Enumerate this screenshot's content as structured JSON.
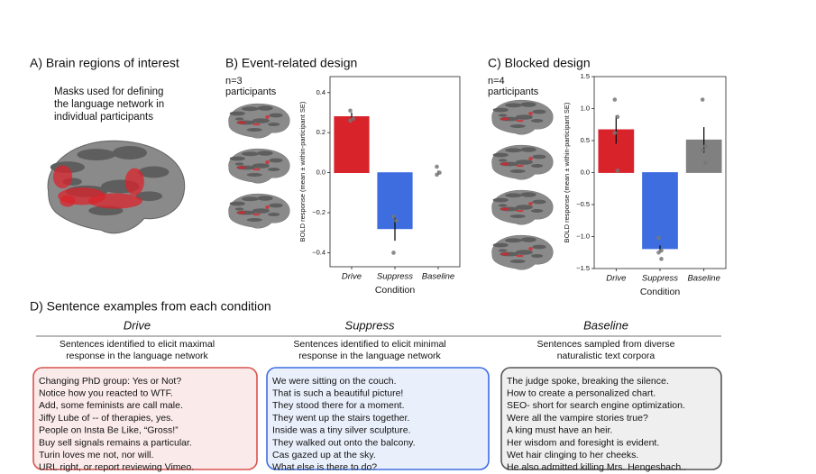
{
  "panel_a": {
    "title": "A)  Brain regions of interest",
    "caption": [
      "Masks used for defining",
      "the language network in",
      "individual participants"
    ]
  },
  "chart_data": [
    {
      "type": "bar",
      "title": "B)  Event-related design",
      "subtitle": [
        "n=3",
        "participants"
      ],
      "ylabel": "BOLD response (mean ± within-participant SE)",
      "xlabel": "Condition",
      "categories": [
        "Drive",
        "Suppress",
        "Baseline"
      ],
      "values": [
        0.28,
        -0.28,
        0.0
      ],
      "errors": [
        0.02,
        0.06,
        0.01
      ],
      "points": [
        [
          0.31,
          0.27,
          0.26
        ],
        [
          -0.22,
          -0.24,
          -0.4
        ],
        [
          0.03,
          0.0,
          -0.01
        ]
      ],
      "colors": [
        "#d9232b",
        "#3e6de0",
        "#808080"
      ],
      "ylim": [
        -0.47,
        0.48
      ],
      "yticks": [
        {
          "value": -0.4,
          "label": "−0.4"
        },
        {
          "value": -0.2,
          "label": "−0.2"
        },
        {
          "value": 0,
          "label": "0.0"
        },
        0.2,
        0.4
      ]
    },
    {
      "type": "bar",
      "title": "C)  Blocked design",
      "subtitle": [
        "n=4",
        "participants"
      ],
      "ylabel": "BOLD response (mean ± within-participant SE)",
      "xlabel": "Condition",
      "categories": [
        "Drive",
        "Suppress",
        "Baseline"
      ],
      "values": [
        0.67,
        -1.19,
        0.51
      ],
      "errors": [
        0.22,
        0.05,
        0.2
      ],
      "points": [
        [
          1.14,
          0.87,
          0.62,
          0.03
        ],
        [
          -1.02,
          -1.22,
          -1.25,
          -1.35
        ],
        [
          1.14,
          0.41,
          0.35,
          0.15
        ]
      ],
      "colors": [
        "#d9232b",
        "#3e6de0",
        "#808080"
      ],
      "ylim": [
        -1.5,
        1.5
      ],
      "yticks": [
        {
          "value": -1.5,
          "label": "−1.5"
        },
        {
          "value": -1,
          "label": "−1.0"
        },
        {
          "value": -0.5,
          "label": "−0.5"
        },
        {
          "value": 0,
          "label": "0.0"
        },
        0.5,
        {
          "value": 1,
          "label": "1.0"
        },
        1.5
      ]
    }
  ],
  "panel_d": {
    "title": "D)  Sentence examples from each condition",
    "columns": [
      {
        "name": "Drive",
        "description": [
          "Sentences identified to elicit maximal",
          "response in the language network"
        ],
        "border": "#d9534f",
        "background": "#fbeaea",
        "sentences": [
          "Changing PhD group: Yes or Not?",
          "Notice how you reacted to WTF.",
          "Add, some feminists are call male.",
          "Jiffy Lube of -- of therapies, yes.",
          "People on Insta Be Like, “Gross!”",
          "Buy sell signals remains a particular.",
          "Turin loves me not, nor will.",
          "URL right, or report reviewing Vimeo."
        ]
      },
      {
        "name": "Suppress",
        "description": [
          "Sentences identified to elicit minimal",
          "response in the language network"
        ],
        "border": "#3e6de0",
        "background": "#eaf0fb",
        "sentences": [
          "We were sitting on the couch.",
          "That is such a beautiful picture!",
          "They stood there for a moment.",
          "They went up the stairs together.",
          "Inside was a tiny silver sculpture.",
          "They walked out onto the balcony.",
          "Cas gazed up at the sky.",
          "What else is there to do?"
        ]
      },
      {
        "name": "Baseline",
        "description": [
          "Sentences sampled from diverse",
          "naturalistic text corpora"
        ],
        "border": "#555555",
        "background": "#efefef",
        "sentences": [
          "The judge spoke, breaking the silence.",
          "How to create a personalized chart.",
          "SEO- short for search engine optimization.",
          "Were all the vampire stories true?",
          "A king must have an heir.",
          "Her wisdom and foresight is evident.",
          "Wet hair clinging to her cheeks.",
          "He also admitted killing Mrs. Hengesbach.."
        ]
      }
    ]
  }
}
